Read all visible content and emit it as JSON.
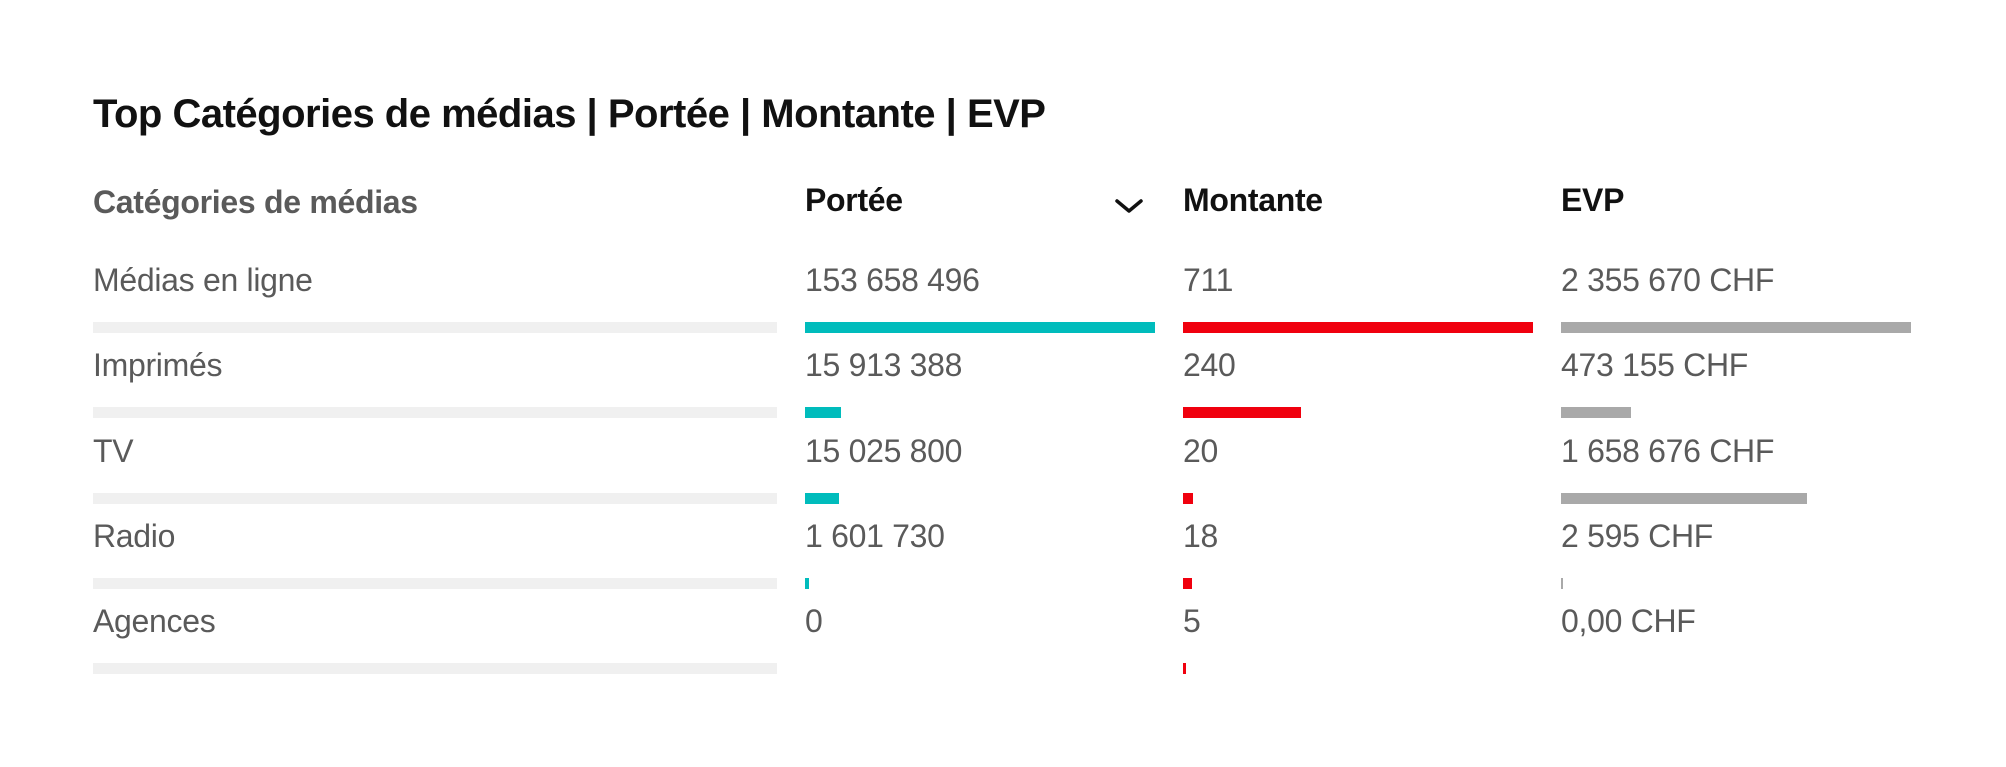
{
  "title": "Top Catégories de médias | Portée | Montante | EVP",
  "headers": {
    "category": "Catégories de médias",
    "reach": "Portée",
    "amount": "Montante",
    "evp": "EVP"
  },
  "sort_icon": "chevron-down-icon",
  "colors": {
    "reach": "#00bcbc",
    "amount": "#f0000e",
    "evp": "#a9a9a9",
    "track": "#f0f0f0"
  },
  "rows": [
    {
      "category": "Médias en ligne",
      "reach": "153 658 496",
      "amount": "711",
      "evp": "2 355 670 CHF"
    },
    {
      "category": "Imprimés",
      "reach": "15 913 388",
      "amount": "240",
      "evp": "473 155 CHF"
    },
    {
      "category": "TV",
      "reach": "15 025 800",
      "amount": "20",
      "evp": "1 658 676 CHF"
    },
    {
      "category": "Radio",
      "reach": "1 601 730",
      "amount": "18",
      "evp": "2 595 CHF"
    },
    {
      "category": "Agences",
      "reach": "0",
      "amount": "5",
      "evp": "0,00 CHF"
    }
  ],
  "chart_data": {
    "type": "table",
    "title": "Top Catégories de médias | Portée | Montante | EVP",
    "categories": [
      "Médias en ligne",
      "Imprimés",
      "TV",
      "Radio",
      "Agences"
    ],
    "series": [
      {
        "name": "Portée",
        "values": [
          153658496,
          15913388,
          15025800,
          1601730,
          0
        ]
      },
      {
        "name": "Montante",
        "values": [
          711,
          240,
          20,
          18,
          5
        ]
      },
      {
        "name": "EVP",
        "values": [
          2355670,
          473155,
          1658676,
          2595,
          0
        ]
      }
    ]
  }
}
